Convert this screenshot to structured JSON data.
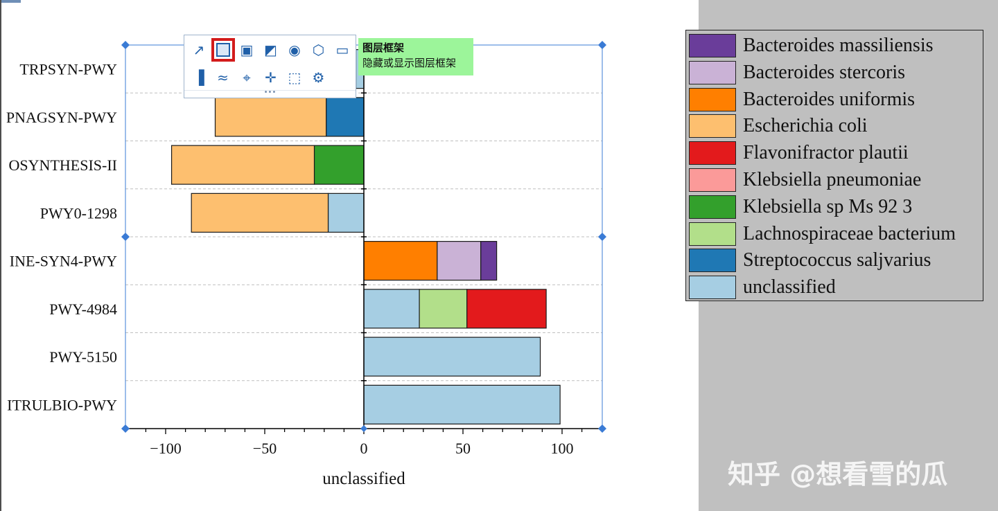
{
  "chart_data": {
    "type": "bar",
    "orientation": "horizontal",
    "stacked": true,
    "xlabel": "unclassified",
    "ylabel": "",
    "xlim": [
      -120,
      120
    ],
    "x_ticks": [
      -100,
      -50,
      0,
      50,
      100
    ],
    "x_tick_labels": [
      "−100",
      "−50",
      "0",
      "50",
      "100"
    ],
    "grid": "horizontal dashed",
    "categories": [
      "TRPSYN-PWY",
      "PNAGSYN-PWY",
      "OSYNTHESIS-II",
      "PWY0-1298",
      "INE-SYN4-PWY",
      "PWY-4984",
      "PWY-5150",
      "ITRULBIO-PWY"
    ],
    "bars": [
      {
        "category": "TRPSYN-PWY",
        "segments": [
          {
            "series": "unclassified",
            "from": 0,
            "to": -4
          }
        ]
      },
      {
        "category": "PNAGSYN-PWY",
        "segments": [
          {
            "series": "Streptococcus saljvarius",
            "from": 0,
            "to": -19
          },
          {
            "series": "Escherichia coli",
            "from": -19,
            "to": -75
          }
        ]
      },
      {
        "category": "OSYNTHESIS-II",
        "segments": [
          {
            "series": "Klebsiella sp Ms 92 3",
            "from": 0,
            "to": -25
          },
          {
            "series": "Escherichia coli",
            "from": -25,
            "to": -97
          }
        ]
      },
      {
        "category": "PWY0-1298",
        "segments": [
          {
            "series": "unclassified",
            "from": 0,
            "to": -18
          },
          {
            "series": "Escherichia coli",
            "from": -18,
            "to": -87
          }
        ]
      },
      {
        "category": "INE-SYN4-PWY",
        "segments": [
          {
            "series": "Bacteroides uniformis",
            "from": 0,
            "to": 37
          },
          {
            "series": "Bacteroides stercoris",
            "from": 37,
            "to": 59
          },
          {
            "series": "Bacteroides massiliensis",
            "from": 59,
            "to": 67
          }
        ]
      },
      {
        "category": "PWY-4984",
        "segments": [
          {
            "series": "unclassified",
            "from": 0,
            "to": 28
          },
          {
            "series": "Lachnospiraceae bacterium",
            "from": 28,
            "to": 52
          },
          {
            "series": "Flavonifractor plautii",
            "from": 52,
            "to": 92
          }
        ]
      },
      {
        "category": "PWY-5150",
        "segments": [
          {
            "series": "unclassified",
            "from": 0,
            "to": 89
          }
        ]
      },
      {
        "category": "ITRULBIO-PWY",
        "segments": [
          {
            "series": "unclassified",
            "from": 0,
            "to": 99
          }
        ]
      }
    ],
    "legend": [
      {
        "name": "Bacteroides massiliensis",
        "color": "#6a3d9a"
      },
      {
        "name": "Bacteroides stercoris",
        "color": "#cab2d6"
      },
      {
        "name": "Bacteroides uniformis",
        "color": "#ff7f00"
      },
      {
        "name": "Escherichia coli",
        "color": "#fdbf6f"
      },
      {
        "name": "Flavonifractor plautii",
        "color": "#e31a1c"
      },
      {
        "name": "Klebsiella pneumoniae",
        "color": "#fb9a99"
      },
      {
        "name": "Klebsiella sp Ms 92 3",
        "color": "#33a02c"
      },
      {
        "name": "Lachnospiraceae bacterium",
        "color": "#b2df8a"
      },
      {
        "name": "Streptococcus saljvarius",
        "color": "#1f78b4"
      },
      {
        "name": "unclassified",
        "color": "#a6cee3"
      }
    ],
    "legend_position": "right"
  },
  "toolbar": {
    "icons": [
      {
        "name": "axis-icon",
        "glyph": "↗"
      },
      {
        "name": "layer-frame-icon",
        "glyph": ""
      },
      {
        "name": "layer-content-icon",
        "glyph": "▣"
      },
      {
        "name": "fill-icon",
        "glyph": "◩"
      },
      {
        "name": "visibility-icon",
        "glyph": "◉"
      },
      {
        "name": "cube-icon",
        "glyph": "⬡"
      },
      {
        "name": "text-box-icon",
        "glyph": "▭"
      },
      {
        "name": "bar-plot-icon",
        "glyph": "▐"
      },
      {
        "name": "hide-plot-icon",
        "glyph": "≈"
      },
      {
        "name": "rescale-icon",
        "glyph": "⌖"
      },
      {
        "name": "move-axis-icon",
        "glyph": "✛"
      },
      {
        "name": "select-icon",
        "glyph": "⬚"
      },
      {
        "name": "gear-icon",
        "glyph": "⚙"
      }
    ],
    "grip": "•••"
  },
  "tooltip": {
    "title": "图层框架",
    "description": "隐藏或显示图层框架"
  },
  "watermark": "知乎 @想看雪的瓜",
  "colors": {
    "frame": "#3a7bd5",
    "grid": "#bfbfbf",
    "workspace": "#c0c0c0",
    "tooltip_bg": "#9cf59a",
    "highlight": "#d31b1b"
  }
}
